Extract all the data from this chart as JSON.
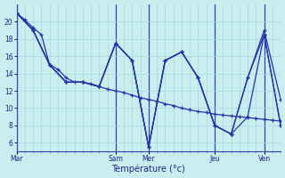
{
  "background_color": "#c8eef0",
  "grid_color": "#a8d8dc",
  "line_color": "#2233aa",
  "vline_color": "#3344bb",
  "xlabel": "Température (°c)",
  "ylim": [
    5,
    22
  ],
  "xlim": [
    0,
    96
  ],
  "yticks": [
    6,
    8,
    10,
    12,
    14,
    16,
    18,
    20
  ],
  "day_labels": [
    "Mar",
    "Sam",
    "Mer",
    "Jeu",
    "Ven"
  ],
  "day_x": [
    0,
    36,
    48,
    72,
    90
  ],
  "lines": [
    {
      "x": [
        0,
        3,
        6,
        9,
        12,
        15,
        18,
        21,
        24,
        27,
        30,
        33,
        36,
        39,
        42,
        45,
        48,
        51,
        54,
        57,
        60,
        63,
        66,
        69,
        72,
        75,
        78,
        81,
        84,
        87,
        90,
        93,
        96
      ],
      "y": [
        21,
        20.2,
        19.3,
        18.5,
        15,
        14.5,
        13.5,
        13,
        13,
        12.8,
        12.5,
        12.2,
        12,
        11.8,
        11.5,
        11.2,
        11,
        10.8,
        10.5,
        10.3,
        10,
        9.8,
        9.6,
        9.5,
        9.3,
        9.2,
        9.1,
        9.0,
        8.9,
        8.8,
        8.7,
        8.6,
        8.5
      ]
    },
    {
      "x": [
        0,
        6,
        12,
        18,
        24,
        30,
        36,
        42,
        48,
        54,
        60,
        66,
        72,
        78,
        84,
        90,
        96
      ],
      "y": [
        21,
        19,
        15,
        13,
        13,
        12.5,
        17.5,
        15.5,
        5.5,
        15.5,
        16.5,
        13.5,
        8,
        7,
        13.5,
        19,
        11
      ]
    },
    {
      "x": [
        0,
        6,
        12,
        18,
        24,
        30,
        36,
        42,
        48,
        54,
        60,
        66,
        72,
        78,
        84,
        90,
        96
      ],
      "y": [
        21,
        19,
        15,
        13,
        13,
        12.5,
        17.5,
        15.5,
        5.5,
        15.5,
        16.5,
        13.5,
        8,
        7,
        13.5,
        18.5,
        8
      ]
    },
    {
      "x": [
        0,
        6,
        12,
        18,
        24,
        30,
        36,
        42,
        48,
        54,
        60,
        66,
        72,
        78,
        84,
        90,
        96
      ],
      "y": [
        21,
        19,
        15,
        13,
        13,
        12.5,
        17.5,
        15.5,
        5.5,
        15.5,
        16.5,
        13.5,
        8,
        7,
        9,
        18.5,
        8
      ]
    }
  ]
}
